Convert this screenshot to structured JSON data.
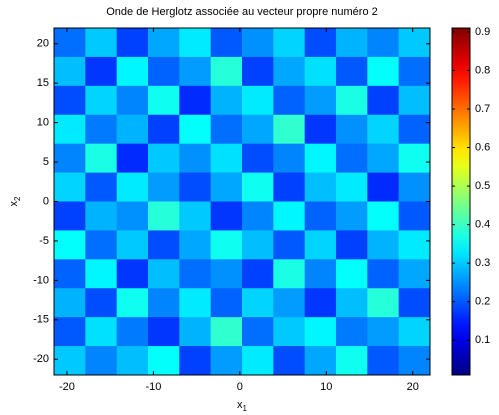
{
  "chart_data": {
    "type": "heatmap",
    "title": "Onde de Herglotz associée au vecteur propre numéro 2",
    "xlabel": {
      "text": "x",
      "subscript": "1"
    },
    "ylabel": {
      "text": "x",
      "subscript": "2"
    },
    "xlim": [
      -21.5,
      22
    ],
    "ylim": [
      -22,
      22
    ],
    "xticks": [
      -20,
      -10,
      0,
      10,
      20
    ],
    "yticks": [
      -20,
      -15,
      -10,
      -5,
      0,
      5,
      10,
      15,
      20
    ],
    "colormap": "jet",
    "clim": [
      0.01,
      0.91
    ],
    "cticks": [
      0.1,
      0.2,
      0.3,
      0.4,
      0.5,
      0.6,
      0.7,
      0.8,
      0.9
    ],
    "z": [
      [
        0.22,
        0.3,
        0.18,
        0.27,
        0.33,
        0.2,
        0.25,
        0.31,
        0.19,
        0.28,
        0.24,
        0.3
      ],
      [
        0.29,
        0.17,
        0.34,
        0.21,
        0.26,
        0.38,
        0.18,
        0.27,
        0.32,
        0.2,
        0.35,
        0.22
      ],
      [
        0.19,
        0.31,
        0.24,
        0.36,
        0.16,
        0.28,
        0.33,
        0.21,
        0.26,
        0.37,
        0.18,
        0.29
      ],
      [
        0.33,
        0.23,
        0.28,
        0.18,
        0.35,
        0.22,
        0.27,
        0.39,
        0.17,
        0.25,
        0.31,
        0.21
      ],
      [
        0.24,
        0.37,
        0.16,
        0.3,
        0.25,
        0.32,
        0.19,
        0.24,
        0.34,
        0.22,
        0.27,
        0.36
      ],
      [
        0.31,
        0.2,
        0.33,
        0.26,
        0.19,
        0.27,
        0.36,
        0.18,
        0.29,
        0.33,
        0.16,
        0.25
      ],
      [
        0.18,
        0.28,
        0.25,
        0.38,
        0.3,
        0.17,
        0.24,
        0.34,
        0.21,
        0.26,
        0.35,
        0.2
      ],
      [
        0.35,
        0.22,
        0.3,
        0.19,
        0.27,
        0.36,
        0.29,
        0.2,
        0.31,
        0.18,
        0.28,
        0.33
      ],
      [
        0.21,
        0.34,
        0.17,
        0.29,
        0.22,
        0.25,
        0.18,
        0.37,
        0.24,
        0.35,
        0.21,
        0.27
      ],
      [
        0.28,
        0.19,
        0.36,
        0.24,
        0.33,
        0.21,
        0.31,
        0.26,
        0.17,
        0.29,
        0.38,
        0.19
      ],
      [
        0.2,
        0.32,
        0.23,
        0.17,
        0.28,
        0.39,
        0.22,
        0.3,
        0.34,
        0.23,
        0.26,
        0.31
      ],
      [
        0.3,
        0.24,
        0.29,
        0.35,
        0.18,
        0.26,
        0.33,
        0.19,
        0.27,
        0.36,
        0.2,
        0.24
      ]
    ]
  }
}
